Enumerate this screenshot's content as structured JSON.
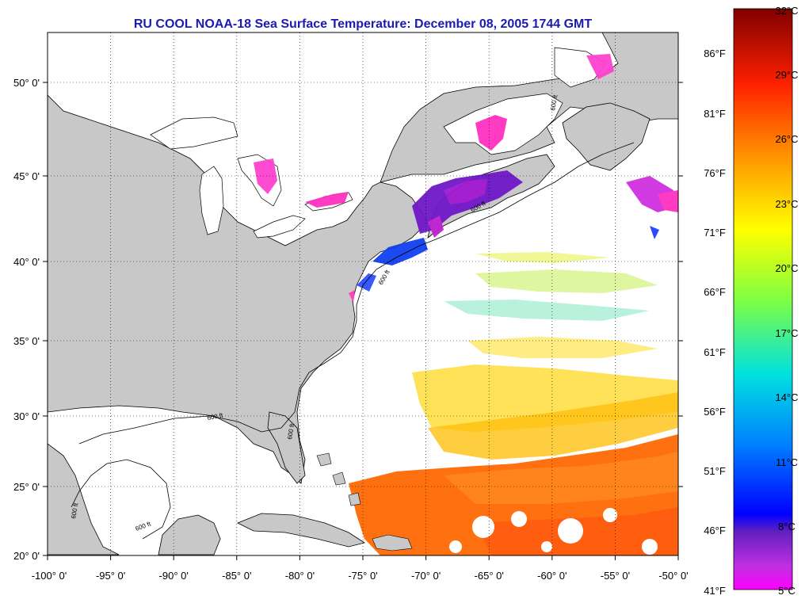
{
  "title": "RU COOL  NOAA-18  Sea Surface Temperature:  December 08, 2005 1744 GMT",
  "map": {
    "lon_range": [
      -100,
      -50
    ],
    "lat_range": [
      20,
      52.5
    ],
    "lon_ticks": [
      "-100° 0'",
      "-95° 0'",
      "-90° 0'",
      "-85° 0'",
      "-80° 0'",
      "-75° 0'",
      "-70° 0'",
      "-65° 0'",
      "-60° 0'",
      "-55° 0'",
      "-50° 0'"
    ],
    "lat_ticks": [
      "20° 0'",
      "25° 0'",
      "30° 0'",
      "35° 0'",
      "40° 0'",
      "45° 0'",
      "50° 0'"
    ],
    "grid": true,
    "land_color": "#c8c8c8",
    "isobath_label": "600 ft"
  },
  "colorbar": {
    "celsius": [
      "32°C",
      "29°C",
      "26°C",
      "23°C",
      "20°C",
      "17°C",
      "14°C",
      "11°C",
      "8°C",
      "5°C"
    ],
    "fahrenheit": [
      "86°F",
      "81°F",
      "76°F",
      "71°F",
      "66°F",
      "61°F",
      "56°F",
      "51°F",
      "46°F",
      "41°F"
    ],
    "range_c": [
      5,
      32
    ],
    "colors": [
      "#ff00ff",
      "#8000c0",
      "#0000ff",
      "#00c8ff",
      "#00ff80",
      "#ffff00",
      "#ff8000",
      "#ff0000",
      "#800000"
    ]
  }
}
